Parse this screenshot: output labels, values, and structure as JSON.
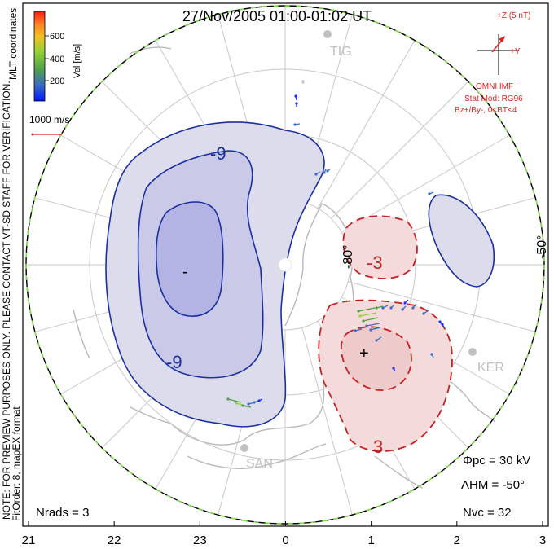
{
  "title": "27/Nov/2005 01:00-01:02 UT",
  "side_note": "NOTE: FOR PREVIEW PURPOSES ONLY. PLEASE CONTACT VT-SD STAFF FOR VERIFICATION.",
  "fit_order": "FitOrder: 8, mapEX format",
  "coord_label": "MLT coordinates",
  "colorbar": {
    "label": "Vel [m/s]",
    "ticks": [
      "600",
      "400",
      "200"
    ],
    "colors": [
      "#0019ff",
      "#3a6cc4",
      "#4ea04a",
      "#93d234",
      "#f0c020",
      "#ff8020",
      "#ff1a10"
    ]
  },
  "velocity_scale": "1000 m/s",
  "imf": {
    "bz_label": "+Z (5 nT)",
    "by_label": "+Y",
    "source": "OMNI IMF",
    "stat_mod": "Stat Mod: RG96",
    "condition": "Bz+/By-, 0<BT<4"
  },
  "stations": [
    "TIG",
    "KER",
    "SAN"
  ],
  "lat_labels": [
    "-80°",
    "-50°"
  ],
  "mlt_labels": [
    "21",
    "22",
    "23",
    "0",
    "1",
    "2",
    "3"
  ],
  "contour_labels": [
    "-9",
    "-9",
    "-3",
    "3"
  ],
  "extrema": [
    "-",
    "+"
  ],
  "stats": {
    "phi_pc": "Φpc = 30 kV",
    "lambda_hm": "ΛHM = -50°",
    "n_vc": "Nvc = 32",
    "n_rads": "Nrads = 3"
  },
  "chart_data": {
    "type": "polar convection map",
    "pole": "south geomagnetic",
    "lat_circles": [
      -80,
      -70,
      -60,
      -50
    ],
    "mlt_ticks": [
      21,
      22,
      23,
      0,
      1,
      2,
      3
    ],
    "cross_polar_cap_potential_kV": 30,
    "heppner_maynard_boundary_deg": -50,
    "n_vectors": 32,
    "n_radars": 3,
    "contour_interval_kV": 6,
    "negative_cell": "dusk (blue, -)",
    "positive_cell": "dawn (red, +)"
  }
}
